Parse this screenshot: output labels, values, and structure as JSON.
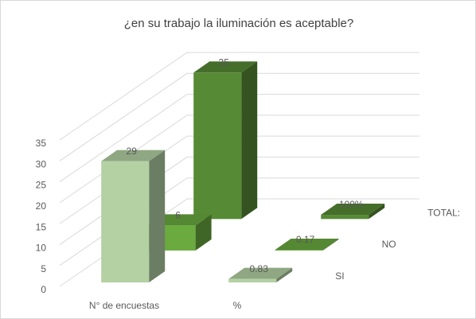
{
  "chart_data": {
    "type": "bar3d",
    "title": "¿en su trabajo la iluminación es aceptable?",
    "categories": [
      "N° de encuestas",
      "%"
    ],
    "series": [
      {
        "name": "SI",
        "color": "#b3d1a3",
        "values": [
          29,
          0.83
        ]
      },
      {
        "name": "NO",
        "color": "#6aaa3f",
        "values": [
          6,
          0.17
        ]
      },
      {
        "name": "TOTAL:",
        "color": "#568a35",
        "values": [
          35,
          1
        ],
        "value_labels": [
          "35",
          "100%"
        ]
      }
    ],
    "ylim": [
      0,
      35
    ],
    "yticks": [
      0,
      5,
      10,
      15,
      20,
      25,
      30,
      35
    ],
    "grid": true
  }
}
